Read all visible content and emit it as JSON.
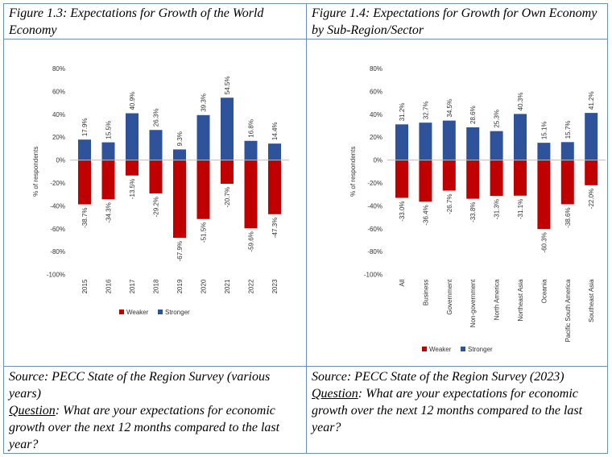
{
  "figures": [
    {
      "title": "Figure 1.3: Expectations for Growth of the World Economy",
      "source": "Source: PECC State of the Region Survey (various years)",
      "question_label": "Question",
      "question_text": ": What are your expectations for economic growth over the next 12 months compared to the last year?"
    },
    {
      "title": "Figure 1.4: Expectations for Growth for Own Economy by Sub-Region/Sector",
      "source": "Source: PECC State of the Region Survey (2023)",
      "question_label": "Question",
      "question_text": ": What are your expectations for economic growth over the next 12 months compared to the last year?"
    }
  ],
  "colors": {
    "weaker": "#c00000",
    "stronger": "#2e539b",
    "border": "#6b8fbf"
  },
  "chart_data": [
    {
      "type": "bar",
      "ylabel": "% of respondents",
      "ylim": [
        -100,
        80
      ],
      "yticks": [
        "80%",
        "60%",
        "40%",
        "20%",
        "0%",
        "-20%",
        "-40%",
        "-60%",
        "-80%",
        "-100%"
      ],
      "categories": [
        "2015",
        "2016",
        "2017",
        "2018",
        "2019",
        "2020",
        "2021",
        "2022",
        "2023"
      ],
      "series": [
        {
          "name": "Weaker",
          "values": [
            -38.7,
            -34.3,
            -13.5,
            -29.2,
            -67.9,
            -51.5,
            -20.7,
            -59.6,
            -47.3
          ],
          "labels": [
            "-38.7%",
            "-34.3%",
            "-13.5%",
            "-29.2%",
            "-67.9%",
            "-51.5%",
            "-20.7%",
            "-59.6%",
            "-47.3%"
          ]
        },
        {
          "name": "Stronger",
          "values": [
            17.9,
            15.5,
            40.9,
            26.3,
            9.3,
            39.3,
            54.5,
            16.8,
            14.4
          ],
          "labels": [
            "17.9%",
            "15.5%",
            "40.9%",
            "26.3%",
            "9.3%",
            "39.3%",
            "54.5%",
            "16.8%",
            "14.4%"
          ]
        }
      ],
      "legend": "bottom",
      "grid": false
    },
    {
      "type": "bar",
      "ylabel": "% of respondents",
      "ylim": [
        -100,
        80
      ],
      "yticks": [
        "80%",
        "60%",
        "40%",
        "20%",
        "0%",
        "-20%",
        "-40%",
        "-60%",
        "-80%",
        "-100%"
      ],
      "categories": [
        "All",
        "Business",
        "Government",
        "Non-government",
        "North America",
        "Northeast Asia",
        "Oceania",
        "Pacific South America",
        "Southeast Asia"
      ],
      "series": [
        {
          "name": "Weaker",
          "values": [
            -33.0,
            -36.4,
            -26.7,
            -33.8,
            -31.3,
            -31.1,
            -60.3,
            -38.6,
            -22.0
          ],
          "labels": [
            "-33.0%",
            "-36.4%",
            "-26.7%",
            "-33.8%",
            "-31.3%",
            "-31.1%",
            "-60.3%",
            "-38.6%",
            "-22.0%"
          ]
        },
        {
          "name": "Stronger",
          "values": [
            31.2,
            32.7,
            34.5,
            28.6,
            25.3,
            40.3,
            15.1,
            15.7,
            41.2
          ],
          "labels": [
            "31.2%",
            "32.7%",
            "34.5%",
            "28.6%",
            "25.3%",
            "40.3%",
            "15.1%",
            "15.7%",
            "41.2%"
          ]
        }
      ],
      "legend": "bottom",
      "grid": false
    }
  ]
}
